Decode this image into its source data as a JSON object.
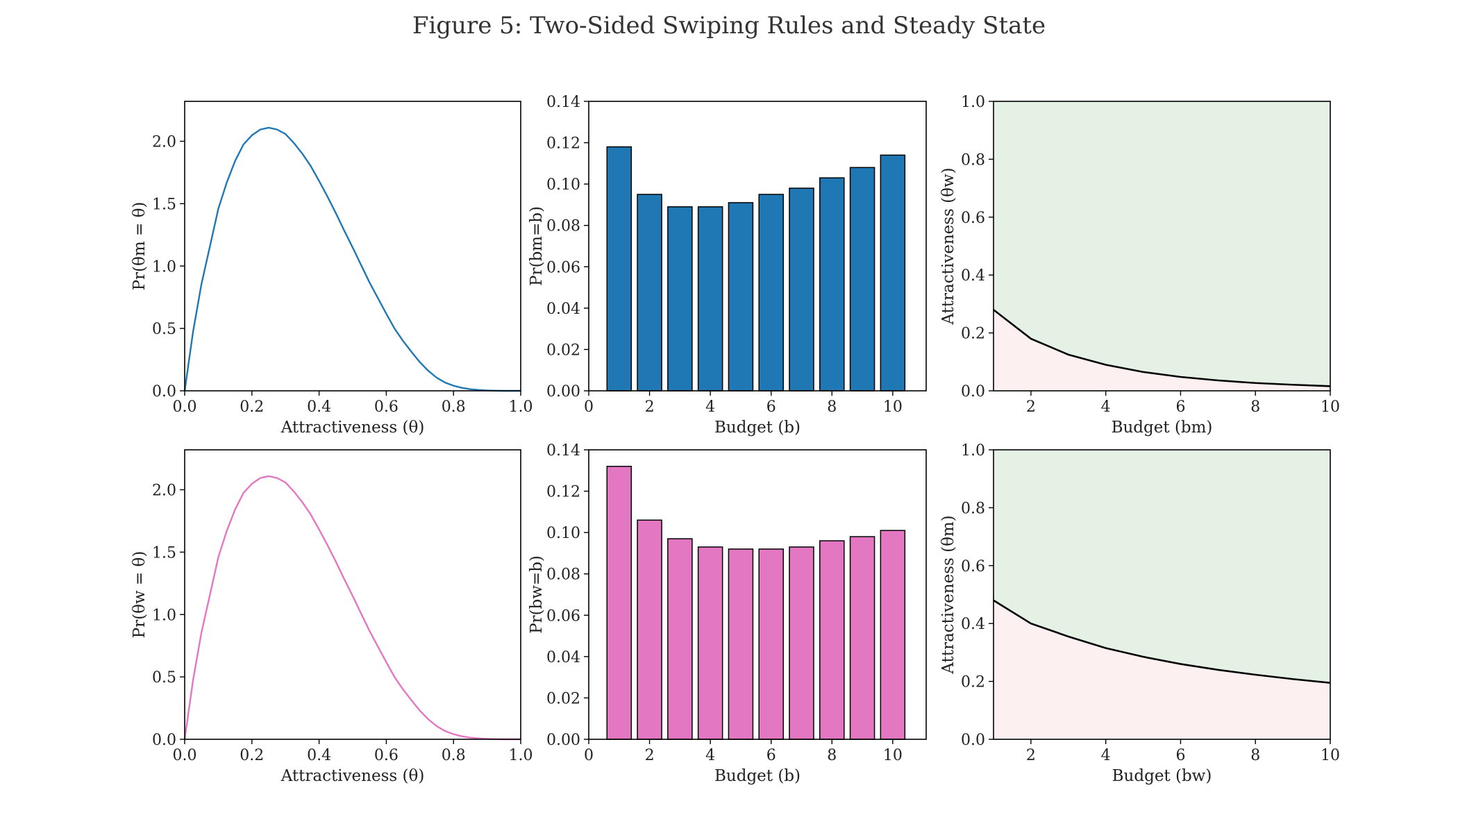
{
  "figure": {
    "title": "Figure 5: Two-Sided Swiping Rules and Steady State"
  },
  "chart_data": [
    {
      "id": "density-men",
      "type": "line",
      "xlabel": "Attractiveness (θ)",
      "ylabel": "Pr(θm = θ)",
      "xlim": [
        0,
        1
      ],
      "ylim": [
        0,
        2.32
      ],
      "xticks": [
        "0.0",
        "0.2",
        "0.4",
        "0.6",
        "0.8",
        "1.0"
      ],
      "yticks": [
        "0.0",
        "0.5",
        "1.0",
        "1.5",
        "2.0"
      ],
      "series": [
        {
          "color": "#1f77b4",
          "x": [
            0,
            0.025,
            0.05,
            0.075,
            0.1,
            0.125,
            0.15,
            0.175,
            0.2,
            0.225,
            0.25,
            0.275,
            0.3,
            0.325,
            0.35,
            0.375,
            0.4,
            0.425,
            0.45,
            0.475,
            0.5,
            0.525,
            0.55,
            0.575,
            0.6,
            0.625,
            0.65,
            0.675,
            0.7,
            0.725,
            0.75,
            0.775,
            0.8,
            0.825,
            0.85,
            0.875,
            0.9,
            0.925,
            0.95,
            0.975,
            1.0
          ],
          "y": [
            0,
            0.475,
            0.857,
            1.156,
            1.458,
            1.668,
            1.842,
            1.975,
            2.048,
            2.094,
            2.109,
            2.094,
            2.058,
            1.986,
            1.901,
            1.802,
            1.682,
            1.556,
            1.423,
            1.283,
            1.148,
            1.008,
            0.869,
            0.743,
            0.618,
            0.497,
            0.399,
            0.312,
            0.229,
            0.16,
            0.105,
            0.066,
            0.041,
            0.024,
            0.013,
            0.007,
            0.003,
            0.001,
            0,
            0,
            0
          ]
        }
      ]
    },
    {
      "id": "budget-men",
      "type": "bar",
      "xlabel": "Budget (b)",
      "ylabel": "Pr(bm=b)",
      "xlim": [
        0,
        11.1
      ],
      "ylim": [
        0,
        0.14
      ],
      "xticks": [
        "0",
        "2",
        "4",
        "6",
        "8",
        "10"
      ],
      "yticks": [
        "0.00",
        "0.02",
        "0.04",
        "0.06",
        "0.08",
        "0.10",
        "0.12",
        "0.14"
      ],
      "color": "#1f77b4",
      "categories": [
        "1",
        "2",
        "3",
        "4",
        "5",
        "6",
        "7",
        "8",
        "9",
        "10"
      ],
      "values": [
        0.118,
        0.095,
        0.089,
        0.089,
        0.091,
        0.095,
        0.098,
        0.103,
        0.108,
        0.114
      ]
    },
    {
      "id": "threshold-women",
      "type": "area",
      "xlabel": "Budget (bm)",
      "ylabel": "Attractiveness (θw)",
      "xlim": [
        1,
        10
      ],
      "ylim": [
        0,
        1
      ],
      "xticks": [
        "2",
        "4",
        "6",
        "8",
        "10"
      ],
      "yticks": [
        "0.0",
        "0.2",
        "0.4",
        "0.6",
        "0.8",
        "1.0"
      ],
      "colors": {
        "line": "#000000",
        "above": "#e5f1e5",
        "below": "#fdf0f0"
      },
      "x": [
        1,
        2,
        3,
        4,
        5,
        6,
        7,
        8,
        9,
        10
      ],
      "y": [
        0.28,
        0.18,
        0.125,
        0.09,
        0.065,
        0.048,
        0.036,
        0.027,
        0.021,
        0.016
      ]
    },
    {
      "id": "density-women",
      "type": "line",
      "xlabel": "Attractiveness (θ)",
      "ylabel": "Pr(θw = θ)",
      "xlim": [
        0,
        1
      ],
      "ylim": [
        0,
        2.32
      ],
      "xticks": [
        "0.0",
        "0.2",
        "0.4",
        "0.6",
        "0.8",
        "1.0"
      ],
      "yticks": [
        "0.0",
        "0.5",
        "1.0",
        "1.5",
        "2.0"
      ],
      "series": [
        {
          "color": "#e377c2",
          "x": [
            0,
            0.025,
            0.05,
            0.075,
            0.1,
            0.125,
            0.15,
            0.175,
            0.2,
            0.225,
            0.25,
            0.275,
            0.3,
            0.325,
            0.35,
            0.375,
            0.4,
            0.425,
            0.45,
            0.475,
            0.5,
            0.525,
            0.55,
            0.575,
            0.6,
            0.625,
            0.65,
            0.675,
            0.7,
            0.725,
            0.75,
            0.775,
            0.8,
            0.825,
            0.85,
            0.875,
            0.9,
            0.925,
            0.95,
            0.975,
            1.0
          ],
          "y": [
            0,
            0.475,
            0.857,
            1.156,
            1.458,
            1.668,
            1.842,
            1.975,
            2.048,
            2.094,
            2.109,
            2.094,
            2.058,
            1.986,
            1.901,
            1.802,
            1.682,
            1.556,
            1.423,
            1.283,
            1.148,
            1.008,
            0.869,
            0.743,
            0.618,
            0.497,
            0.399,
            0.312,
            0.229,
            0.16,
            0.105,
            0.066,
            0.041,
            0.024,
            0.013,
            0.007,
            0.003,
            0.001,
            0,
            0,
            0
          ]
        }
      ]
    },
    {
      "id": "budget-women",
      "type": "bar",
      "xlabel": "Budget (b)",
      "ylabel": "Pr(bw=b)",
      "xlim": [
        0,
        11.1
      ],
      "ylim": [
        0,
        0.14
      ],
      "xticks": [
        "0",
        "2",
        "4",
        "6",
        "8",
        "10"
      ],
      "yticks": [
        "0.00",
        "0.02",
        "0.04",
        "0.06",
        "0.08",
        "0.10",
        "0.12",
        "0.14"
      ],
      "color": "#e377c2",
      "categories": [
        "1",
        "2",
        "3",
        "4",
        "5",
        "6",
        "7",
        "8",
        "9",
        "10"
      ],
      "values": [
        0.132,
        0.106,
        0.097,
        0.093,
        0.092,
        0.092,
        0.093,
        0.096,
        0.098,
        0.101
      ]
    },
    {
      "id": "threshold-men",
      "type": "area",
      "xlabel": "Budget (bw)",
      "ylabel": "Attractiveness (θm)",
      "xlim": [
        1,
        10
      ],
      "ylim": [
        0,
        1
      ],
      "xticks": [
        "2",
        "4",
        "6",
        "8",
        "10"
      ],
      "yticks": [
        "0.0",
        "0.2",
        "0.4",
        "0.6",
        "0.8",
        "1.0"
      ],
      "colors": {
        "line": "#000000",
        "above": "#e5f1e5",
        "below": "#fdf0f0"
      },
      "x": [
        1,
        2,
        3,
        4,
        5,
        6,
        7,
        8,
        9,
        10
      ],
      "y": [
        0.48,
        0.4,
        0.355,
        0.315,
        0.285,
        0.26,
        0.24,
        0.223,
        0.208,
        0.195
      ]
    }
  ]
}
